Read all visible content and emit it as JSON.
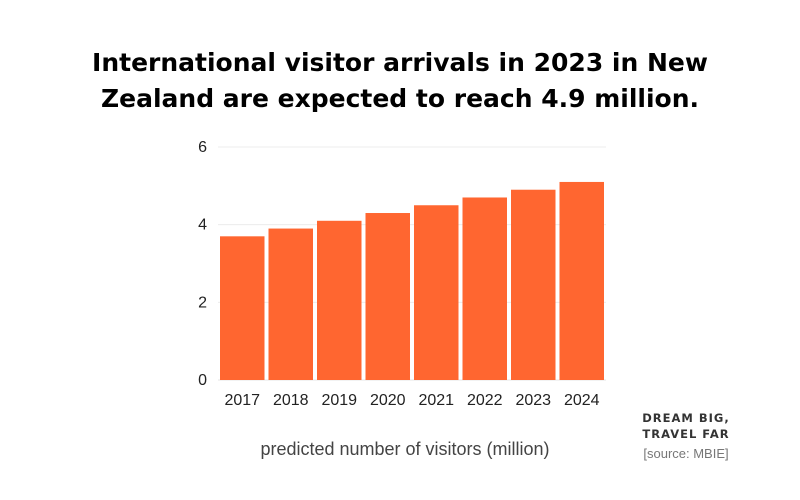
{
  "header": {
    "title_line1": "International visitor arrivals in 2023 in New",
    "title_line2": "Zealand are expected to reach 4.9 million."
  },
  "chart_data": {
    "type": "bar",
    "title": "International visitor arrivals in 2023 in New Zealand are expected to reach 4.9 million.",
    "categories": [
      "2017",
      "2018",
      "2019",
      "2020",
      "2021",
      "2022",
      "2023",
      "2024"
    ],
    "values": [
      3.7,
      3.9,
      4.1,
      4.3,
      4.5,
      4.7,
      4.9,
      5.1
    ],
    "xlabel": "predicted number of visitors (million)",
    "ylabel": "",
    "ylim": [
      0,
      6
    ],
    "yticks": [
      "0",
      "2",
      "4",
      "6"
    ],
    "grid": true,
    "bar_color": "#FF6630"
  },
  "branding": {
    "line1": "DREAM BIG,",
    "line2": "TRAVEL FAR",
    "source": "[source: MBIE]"
  }
}
